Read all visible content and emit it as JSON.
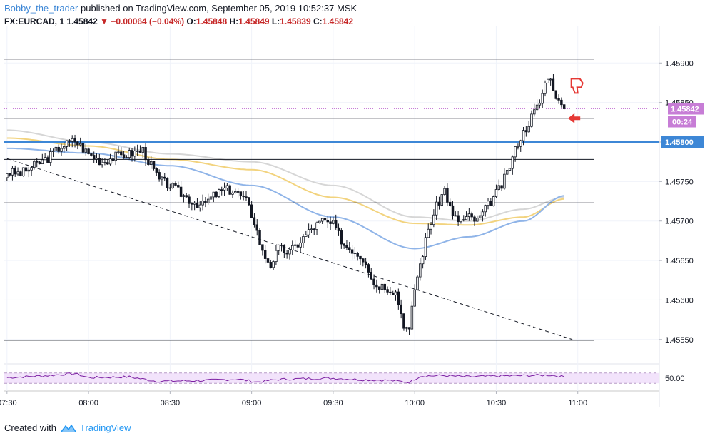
{
  "header": {
    "author": "Bobby_the_trader",
    "published_text": "published on TradingView.com, September 05, 2019 10:52:37 MSK",
    "symbol": "FX:EURCAD, 1",
    "last": "1.45842",
    "change": "−0.00064 (−0.04%)",
    "o_label": "O:",
    "o_value": "1.45848",
    "h_label": "H:",
    "h_value": "1.45849",
    "l_label": "L:",
    "l_value": "1.45839",
    "c_label": "C:",
    "c_value": "1.45842"
  },
  "footer": {
    "created_with": "Created with",
    "brand": "TradingView"
  },
  "colors": {
    "bull_candle": "#ffffff",
    "bear_candle": "#131722",
    "price_label": "#c77dd6",
    "blue_level": "#3d87d6",
    "ma_blue": "#8fb4e8",
    "ma_yellow": "#f2d37e",
    "ma_grey": "#d6d6d6",
    "rsi_line": "#7b1fa2",
    "rsi_band": "#f2e3fb",
    "red_annotation": "#e53935"
  },
  "chart_data": {
    "type": "candlestick",
    "title": "",
    "xlabel": "",
    "ylabel": "",
    "ylim": [
      1.4552,
      1.4594
    ],
    "x_ticks": [
      {
        "label": "07:30",
        "t": 0
      },
      {
        "label": "08:00",
        "t": 30
      },
      {
        "label": "08:30",
        "t": 60
      },
      {
        "label": "09:00",
        "t": 90
      },
      {
        "label": "09:30",
        "t": 120
      },
      {
        "label": "10:00",
        "t": 150
      },
      {
        "label": "10:30",
        "t": 180
      },
      {
        "label": "11:00",
        "t": 210
      }
    ],
    "y_ticks": [
      "1.45550",
      "1.45600",
      "1.45650",
      "1.45700",
      "1.45750",
      "1.45800",
      "1.45850",
      "1.45900"
    ],
    "last_price_label": "1.45842",
    "countdown_label": "00:24",
    "blue_level_label": "1.45800",
    "horizontal_levels": [
      1.45905,
      1.4583,
      1.45778,
      1.45723,
      1.45549
    ],
    "blue_level": 1.458,
    "trendline": {
      "from": [
        0,
        1.45779
      ],
      "to": [
        208,
        1.4555
      ]
    },
    "price_path": [
      [
        0,
        1.45762
      ],
      [
        5,
        1.4576
      ],
      [
        10,
        1.4577
      ],
      [
        15,
        1.4578
      ],
      [
        20,
        1.45795
      ],
      [
        25,
        1.45802
      ],
      [
        30,
        1.45785
      ],
      [
        35,
        1.45775
      ],
      [
        40,
        1.45782
      ],
      [
        45,
        1.45785
      ],
      [
        50,
        1.4579
      ],
      [
        53,
        1.4577
      ],
      [
        56,
        1.45752
      ],
      [
        60,
        1.45745
      ],
      [
        64,
        1.45735
      ],
      [
        68,
        1.45725
      ],
      [
        72,
        1.4572
      ],
      [
        76,
        1.45732
      ],
      [
        80,
        1.4574
      ],
      [
        84,
        1.45738
      ],
      [
        88,
        1.45725
      ],
      [
        91,
        1.457
      ],
      [
        94,
        1.4566
      ],
      [
        97,
        1.45645
      ],
      [
        100,
        1.45665
      ],
      [
        104,
        1.4566
      ],
      [
        108,
        1.45675
      ],
      [
        112,
        1.4569
      ],
      [
        116,
        1.457
      ],
      [
        120,
        1.45695
      ],
      [
        124,
        1.4567
      ],
      [
        128,
        1.45662
      ],
      [
        132,
        1.4565
      ],
      [
        135,
        1.4562
      ],
      [
        139,
        1.45618
      ],
      [
        143,
        1.4561
      ],
      [
        146,
        1.4557
      ],
      [
        148,
        1.4556
      ],
      [
        150,
        1.45615
      ],
      [
        152,
        1.45645
      ],
      [
        155,
        1.4569
      ],
      [
        158,
        1.45718
      ],
      [
        161,
        1.4574
      ],
      [
        164,
        1.45705
      ],
      [
        167,
        1.457
      ],
      [
        170,
        1.45705
      ],
      [
        173,
        1.457
      ],
      [
        176,
        1.45715
      ],
      [
        179,
        1.4573
      ],
      [
        182,
        1.45745
      ],
      [
        185,
        1.4577
      ],
      [
        188,
        1.458
      ],
      [
        191,
        1.45818
      ],
      [
        193,
        1.45832
      ],
      [
        196,
        1.4585
      ],
      [
        199,
        1.45885
      ],
      [
        201,
        1.4587
      ],
      [
        203,
        1.4585
      ],
      [
        205,
        1.45842
      ]
    ],
    "rsi": {
      "band_top": 70,
      "band_bottom": 30,
      "mid_label": "50.00",
      "values": [
        [
          0,
          52
        ],
        [
          15,
          60
        ],
        [
          25,
          68
        ],
        [
          30,
          52
        ],
        [
          45,
          55
        ],
        [
          55,
          38
        ],
        [
          70,
          40
        ],
        [
          85,
          46
        ],
        [
          92,
          35
        ],
        [
          100,
          45
        ],
        [
          110,
          48
        ],
        [
          120,
          50
        ],
        [
          130,
          44
        ],
        [
          140,
          42
        ],
        [
          148,
          34
        ],
        [
          152,
          58
        ],
        [
          160,
          60
        ],
        [
          170,
          55
        ],
        [
          180,
          58
        ],
        [
          190,
          60
        ],
        [
          200,
          62
        ],
        [
          205,
          55
        ]
      ]
    },
    "moving_averages": [
      {
        "color_key": "ma_grey",
        "values": [
          [
            0,
            1.45815
          ],
          [
            30,
            1.458
          ],
          [
            60,
            1.45785
          ],
          [
            90,
            1.45775
          ],
          [
            120,
            1.45745
          ],
          [
            150,
            1.45705
          ],
          [
            170,
            1.457
          ],
          [
            190,
            1.45715
          ],
          [
            205,
            1.4573
          ]
        ]
      },
      {
        "color_key": "ma_yellow",
        "values": [
          [
            0,
            1.45805
          ],
          [
            30,
            1.45795
          ],
          [
            60,
            1.45778
          ],
          [
            90,
            1.45765
          ],
          [
            120,
            1.4573
          ],
          [
            150,
            1.45697
          ],
          [
            170,
            1.45695
          ],
          [
            190,
            1.45705
          ],
          [
            205,
            1.45728
          ]
        ]
      },
      {
        "color_key": "ma_blue",
        "values": [
          [
            0,
            1.45792
          ],
          [
            30,
            1.45786
          ],
          [
            60,
            1.4577
          ],
          [
            90,
            1.45745
          ],
          [
            120,
            1.45705
          ],
          [
            150,
            1.45665
          ],
          [
            170,
            1.4568
          ],
          [
            190,
            1.457
          ],
          [
            205,
            1.45732
          ]
        ]
      }
    ]
  }
}
